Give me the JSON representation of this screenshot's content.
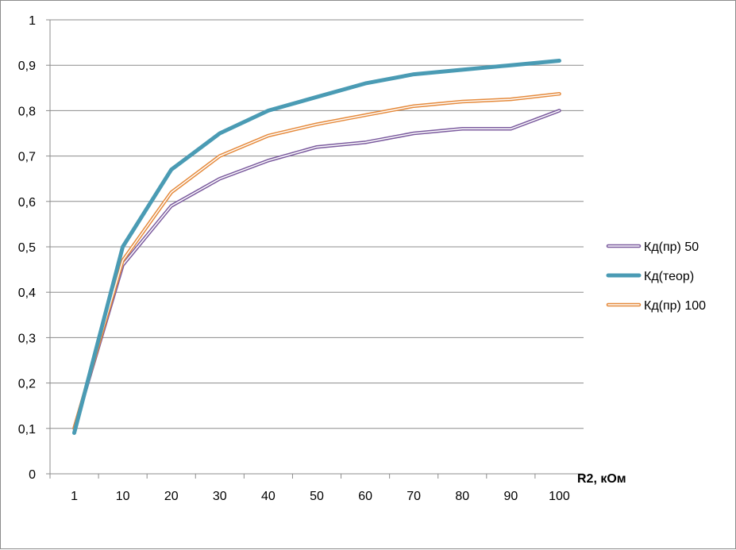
{
  "chart_data": {
    "type": "line",
    "title": "",
    "xlabel": "R2, кОм",
    "ylabel": "",
    "categories": [
      "1",
      "10",
      "20",
      "30",
      "40",
      "50",
      "60",
      "70",
      "80",
      "90",
      "100"
    ],
    "y_ticks": [
      "0",
      "0,1",
      "0,2",
      "0,3",
      "0,4",
      "0,5",
      "0,6",
      "0,7",
      "0,8",
      "0,9",
      "1"
    ],
    "ylim": [
      0,
      1
    ],
    "grid": true,
    "legend_position": "right",
    "series": [
      {
        "name": "Кд(пр) 50",
        "color": "#7b5b9e",
        "style": "double",
        "values": [
          0.1,
          0.46,
          0.59,
          0.65,
          0.69,
          0.72,
          0.73,
          0.75,
          0.76,
          0.76,
          0.8
        ]
      },
      {
        "name": "Кд(теор)",
        "color": "#4a9bb4",
        "style": "thick",
        "values": [
          0.09,
          0.5,
          0.67,
          0.75,
          0.8,
          0.83,
          0.86,
          0.88,
          0.89,
          0.9,
          0.91
        ]
      },
      {
        "name": "Кд(пр) 100",
        "color": "#e58a3c",
        "style": "double",
        "values": [
          0.1,
          0.47,
          0.62,
          0.7,
          0.745,
          0.77,
          0.79,
          0.81,
          0.82,
          0.825,
          0.837
        ]
      }
    ]
  }
}
